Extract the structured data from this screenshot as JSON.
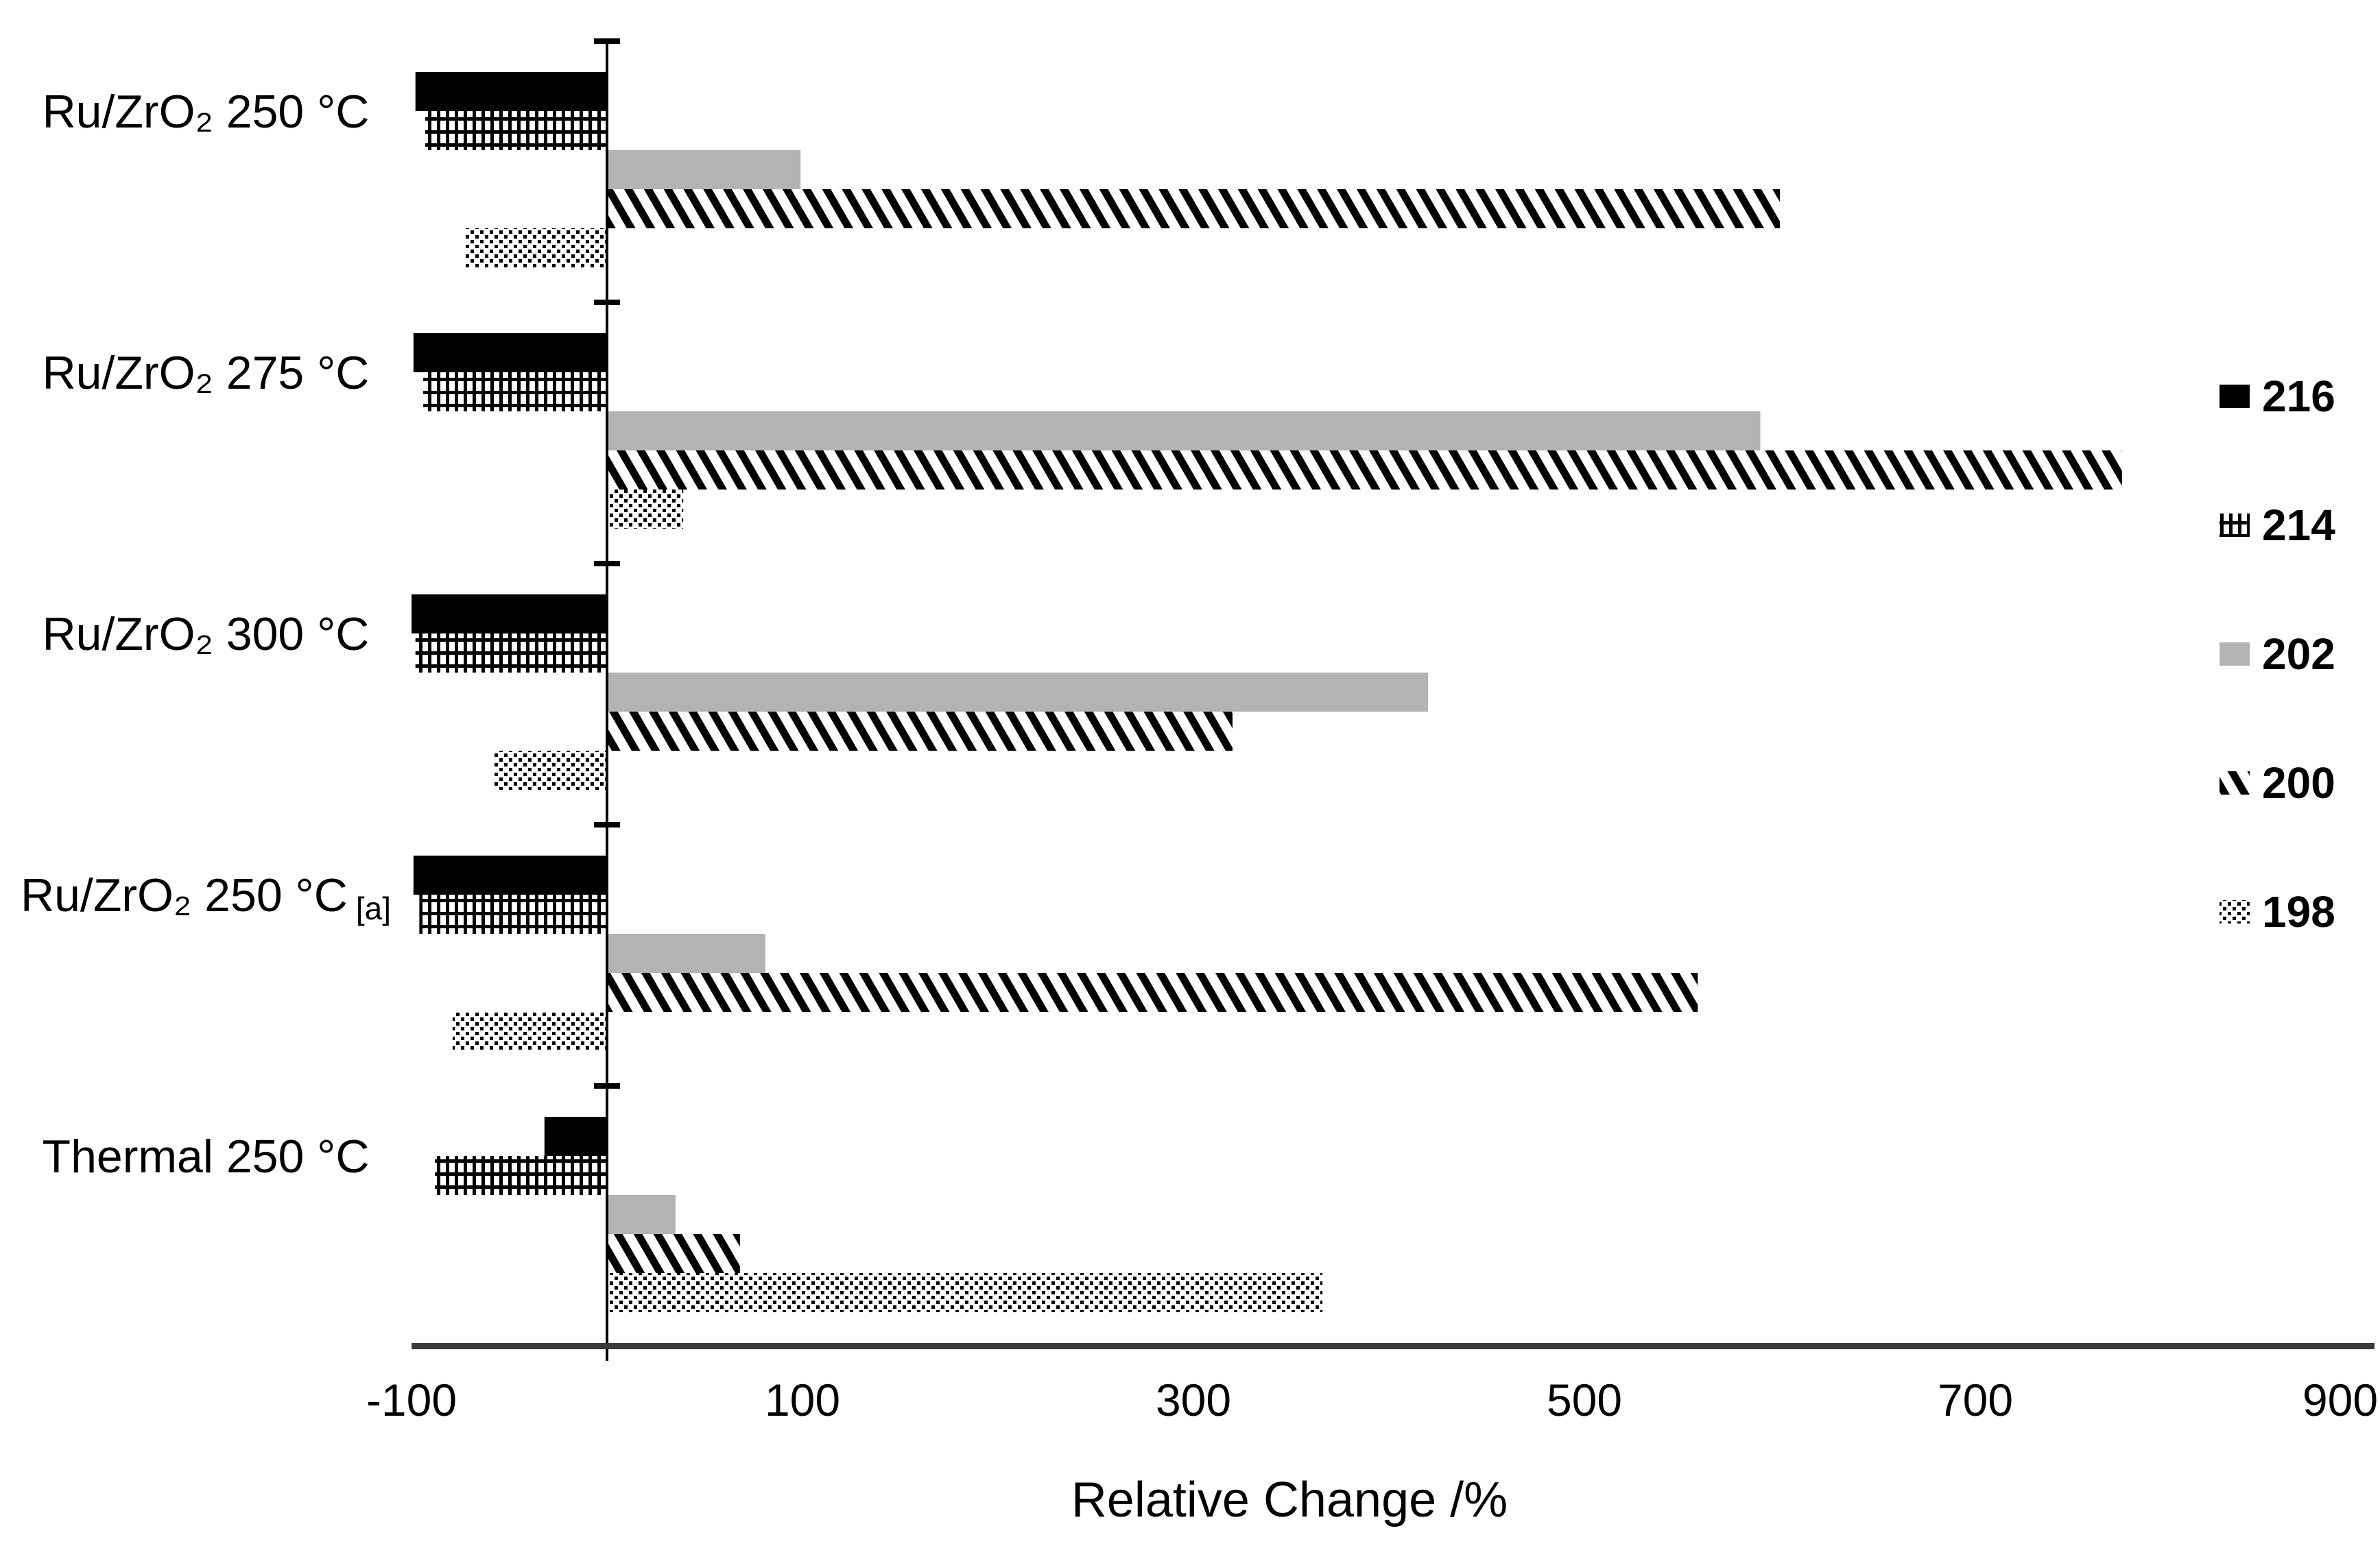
{
  "chart_data": {
    "type": "bar",
    "orientation": "horizontal",
    "title": "",
    "xlabel": "Relative Change /%",
    "xlim": [
      -100,
      900
    ],
    "xticks": [
      "-100",
      "100",
      "300",
      "500",
      "700",
      "900"
    ],
    "grid": false,
    "legend_position": "right",
    "categories": [
      {
        "label": "Ru/ZrO₂ 250 °C",
        "suffix": ""
      },
      {
        "label": "Ru/ZrO₂ 275 °C",
        "suffix": ""
      },
      {
        "label": "Ru/ZrO₂ 300 °C",
        "suffix": ""
      },
      {
        "label": "Ru/ZrO₂ 250 °C",
        "suffix": "[a]"
      },
      {
        "label": "Thermal 250 °C",
        "suffix": ""
      }
    ],
    "series": [
      {
        "name": "216",
        "pattern": "solid-black",
        "values": [
          -98,
          -99,
          -100,
          -99,
          -32
        ]
      },
      {
        "name": "214",
        "pattern": "crosshatch-grid",
        "values": [
          -93,
          -94,
          -98,
          -96,
          -88
        ]
      },
      {
        "name": "202",
        "pattern": "solid-gray",
        "values": [
          99,
          590,
          420,
          81,
          35
        ]
      },
      {
        "name": "200",
        "pattern": "diagonal-stripes",
        "values": [
          600,
          775,
          320,
          558,
          68
        ]
      },
      {
        "name": "198",
        "pattern": "dots",
        "values": [
          -73,
          39,
          -58,
          -79,
          366
        ]
      }
    ],
    "colors": {
      "black": "#000000",
      "gray": "#b3b3b3",
      "axis_line": "#3a3a3a"
    }
  }
}
